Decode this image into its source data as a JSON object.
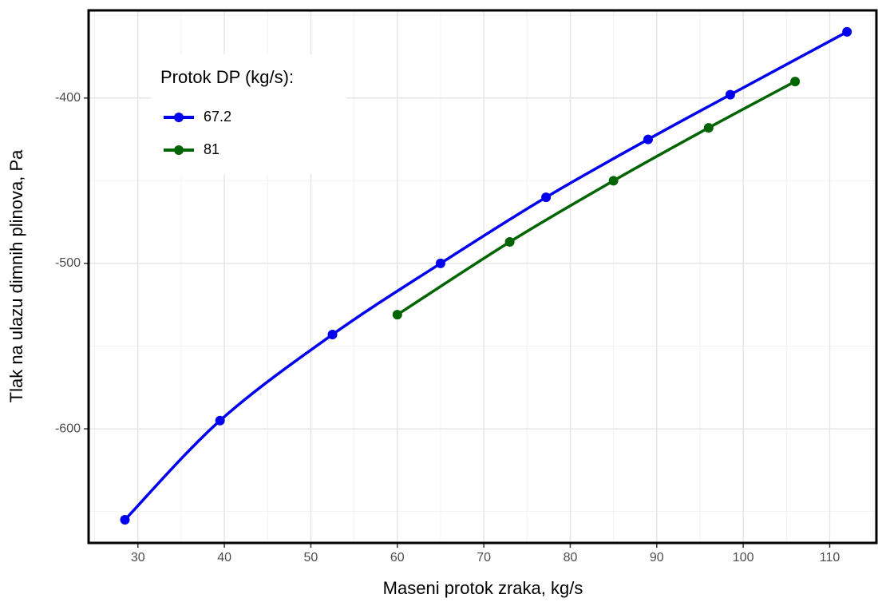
{
  "chart_data": {
    "type": "line",
    "x_label": "Maseni protok zraka, kg/s",
    "y_label": "Tlak na ulazu dimnih plinova, Pa",
    "legend_title": "Protok DP (kg/s):",
    "legend": "top-left",
    "grid": true,
    "smooth": true,
    "xlim": [
      24.3,
      115.4
    ],
    "xticks": [
      30,
      40,
      50,
      60,
      70,
      80,
      90,
      100,
      110
    ],
    "ylim": [
      -669,
      -347
    ],
    "yticks": [
      -600,
      -500,
      -400
    ],
    "series": [
      {
        "name": "67.2",
        "color": "#0000ee",
        "x": [
          28.5,
          39.5,
          52.5,
          65,
          77.2,
          89,
          98.5,
          112
        ],
        "values": [
          -655,
          -595,
          -543,
          -500,
          -460,
          -425,
          -398,
          -360
        ]
      },
      {
        "name": "81",
        "color": "#006400",
        "x": [
          60,
          73,
          85,
          96,
          106
        ],
        "values": [
          -531,
          -487,
          -450,
          -418,
          -390
        ]
      }
    ]
  }
}
